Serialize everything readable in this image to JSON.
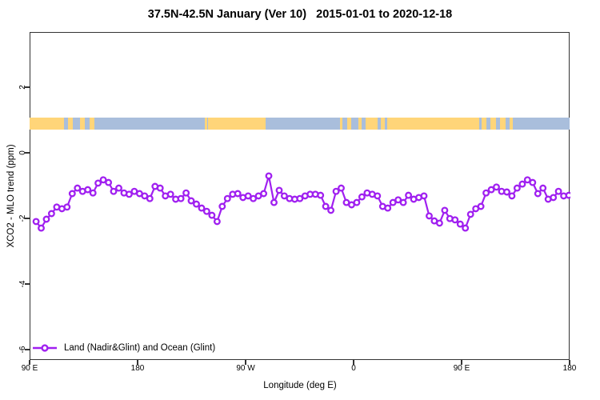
{
  "title": "37.5N-42.5N January (Ver 10)   2015-01-01 to 2020-12-18",
  "chart_data": {
    "type": "line",
    "title": "37.5N-42.5N January (Ver 10)   2015-01-01 to 2020-12-18",
    "xlabel": "Longitude (deg E)",
    "ylabel": "XCO2 - MLO trend (ppm)",
    "x_range_lon": [
      90,
      540
    ],
    "ylim": [
      -6.3,
      3.7
    ],
    "grid": false,
    "x_ticks": [
      {
        "lon": 90,
        "label": "90 E"
      },
      {
        "lon": 180,
        "label": "180"
      },
      {
        "lon": 270,
        "label": "90 W"
      },
      {
        "lon": 360,
        "label": "0"
      },
      {
        "lon": 450,
        "label": "90 E"
      },
      {
        "lon": 540,
        "label": "180"
      }
    ],
    "y_ticks": [
      2,
      0,
      -2,
      -4,
      -6
    ],
    "legend": {
      "position": "bottom-left",
      "label": "Land (Nadir&Glint) and Ocean (Glint)"
    },
    "series": [
      {
        "name": "Land (Nadir&Glint) and Ocean (Glint)",
        "color": "#A020F0",
        "marker": "open-circle",
        "marker_fill": "#ffffff",
        "lon_start": 94.7,
        "lon_end": 538.7,
        "values": [
          -2.07,
          -2.27,
          -2.0,
          -1.83,
          -1.63,
          -1.68,
          -1.63,
          -1.22,
          -1.05,
          -1.15,
          -1.1,
          -1.2,
          -0.9,
          -0.8,
          -0.88,
          -1.15,
          -1.05,
          -1.2,
          -1.24,
          -1.15,
          -1.22,
          -1.29,
          -1.37,
          -1.0,
          -1.05,
          -1.29,
          -1.24,
          -1.39,
          -1.37,
          -1.2,
          -1.44,
          -1.54,
          -1.66,
          -1.76,
          -1.88,
          -2.07,
          -1.61,
          -1.37,
          -1.24,
          -1.22,
          -1.34,
          -1.29,
          -1.37,
          -1.29,
          -1.22,
          -0.68,
          -1.49,
          -1.12,
          -1.29,
          -1.37,
          -1.39,
          -1.37,
          -1.29,
          -1.24,
          -1.24,
          -1.27,
          -1.61,
          -1.73,
          -1.15,
          -1.05,
          -1.49,
          -1.56,
          -1.49,
          -1.32,
          -1.2,
          -1.24,
          -1.29,
          -1.61,
          -1.66,
          -1.49,
          -1.41,
          -1.49,
          -1.27,
          -1.39,
          -1.34,
          -1.29,
          -1.9,
          -2.05,
          -2.12,
          -1.73,
          -1.98,
          -2.02,
          -2.15,
          -2.27,
          -1.85,
          -1.68,
          -1.61,
          -1.2,
          -1.1,
          -1.02,
          -1.15,
          -1.17,
          -1.29,
          -1.05,
          -0.93,
          -0.8,
          -0.88,
          -1.22,
          -1.05,
          -1.39,
          -1.34,
          -1.15,
          -1.29,
          -1.27
        ]
      }
    ],
    "surface_type_band": {
      "value_top": 1.1,
      "value_bottom": 0.73,
      "land_color": "#FFD579",
      "ocean_color": "#A9BEDC",
      "segments": [
        {
          "from": 90,
          "to": 119,
          "type": "land"
        },
        {
          "from": 119,
          "to": 122,
          "type": "ocean"
        },
        {
          "from": 122,
          "to": 126,
          "type": "land"
        },
        {
          "from": 126,
          "to": 132,
          "type": "ocean"
        },
        {
          "from": 132,
          "to": 136,
          "type": "land"
        },
        {
          "from": 136,
          "to": 140,
          "type": "ocean"
        },
        {
          "from": 140,
          "to": 144,
          "type": "land"
        },
        {
          "from": 144,
          "to": 236,
          "type": "ocean"
        },
        {
          "from": 236,
          "to": 238,
          "type": "land"
        },
        {
          "from": 238,
          "to": 239,
          "type": "ocean"
        },
        {
          "from": 239,
          "to": 287,
          "type": "land"
        },
        {
          "from": 287,
          "to": 349,
          "type": "ocean"
        },
        {
          "from": 349,
          "to": 351,
          "type": "land"
        },
        {
          "from": 351,
          "to": 355,
          "type": "ocean"
        },
        {
          "from": 355,
          "to": 358,
          "type": "land"
        },
        {
          "from": 358,
          "to": 364,
          "type": "ocean"
        },
        {
          "from": 364,
          "to": 367,
          "type": "land"
        },
        {
          "from": 367,
          "to": 370,
          "type": "ocean"
        },
        {
          "from": 370,
          "to": 380,
          "type": "land"
        },
        {
          "from": 380,
          "to": 383,
          "type": "ocean"
        },
        {
          "from": 383,
          "to": 386,
          "type": "land"
        },
        {
          "from": 386,
          "to": 388,
          "type": "ocean"
        },
        {
          "from": 388,
          "to": 465,
          "type": "land"
        },
        {
          "from": 465,
          "to": 467,
          "type": "ocean"
        },
        {
          "from": 467,
          "to": 471,
          "type": "land"
        },
        {
          "from": 471,
          "to": 474,
          "type": "ocean"
        },
        {
          "from": 474,
          "to": 479,
          "type": "land"
        },
        {
          "from": 479,
          "to": 482,
          "type": "ocean"
        },
        {
          "from": 482,
          "to": 487,
          "type": "land"
        },
        {
          "from": 487,
          "to": 490,
          "type": "ocean"
        },
        {
          "from": 490,
          "to": 493,
          "type": "land"
        },
        {
          "from": 493,
          "to": 540,
          "type": "ocean"
        }
      ]
    }
  }
}
